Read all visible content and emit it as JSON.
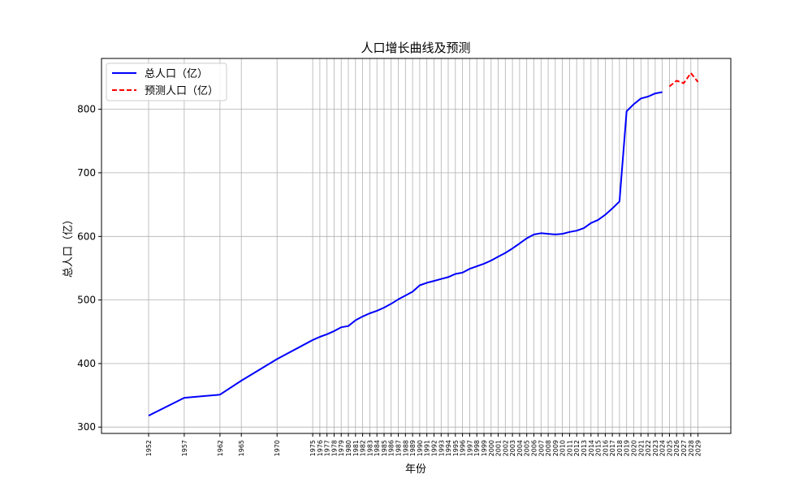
{
  "chart_data": {
    "type": "line",
    "title": "人口增长曲线及预测",
    "xlabel": "年份",
    "ylabel": "总人口（亿）",
    "xlim": [
      1945.4,
      2033.6
    ],
    "ylim": [
      290,
      880
    ],
    "yticks": [
      300,
      400,
      500,
      600,
      700,
      800
    ],
    "xticks": [
      1952,
      1957,
      1962,
      1965,
      1970,
      1975,
      1976,
      1977,
      1978,
      1979,
      1980,
      1981,
      1982,
      1983,
      1984,
      1985,
      1986,
      1987,
      1988,
      1989,
      1990,
      1991,
      1992,
      1993,
      1994,
      1995,
      1996,
      1997,
      1998,
      1999,
      2000,
      2001,
      2002,
      2003,
      2004,
      2005,
      2006,
      2007,
      2008,
      2009,
      2010,
      2011,
      2012,
      2013,
      2014,
      2015,
      2016,
      2017,
      2018,
      2019,
      2020,
      2021,
      2022,
      2023,
      2024,
      2025,
      2026,
      2027,
      2028,
      2029
    ],
    "grid": true,
    "legend_position": "upper left",
    "series": [
      {
        "name": "总人口（亿）",
        "color": "#0000ff",
        "style": "solid",
        "x": [
          1952,
          1957,
          1962,
          1965,
          1970,
          1975,
          1976,
          1977,
          1978,
          1979,
          1980,
          1981,
          1982,
          1983,
          1984,
          1985,
          1986,
          1987,
          1988,
          1989,
          1990,
          1991,
          1992,
          1993,
          1994,
          1995,
          1996,
          1997,
          1998,
          1999,
          2000,
          2001,
          2002,
          2003,
          2004,
          2005,
          2006,
          2007,
          2008,
          2009,
          2010,
          2011,
          2012,
          2013,
          2014,
          2015,
          2016,
          2017,
          2018,
          2019,
          2020,
          2021,
          2022,
          2023,
          2024
        ],
        "values": [
          318,
          346,
          351,
          373,
          407,
          437,
          442,
          446,
          451,
          457,
          459,
          468,
          474,
          479,
          483,
          488,
          494,
          501,
          507,
          513,
          523,
          527,
          530,
          533,
          536,
          541,
          543,
          549,
          553,
          557,
          562,
          568,
          574,
          581,
          589,
          597,
          603,
          605,
          604,
          603,
          604,
          607,
          609,
          613,
          621,
          626,
          634,
          644,
          655,
          797,
          808,
          817,
          820,
          825,
          827
        ]
      },
      {
        "name": "预测人口（亿）",
        "color": "#ff0000",
        "style": "dashed",
        "x": [
          2025,
          2026,
          2027,
          2028,
          2029
        ],
        "values": [
          836,
          845,
          841,
          857,
          843
        ]
      }
    ]
  }
}
